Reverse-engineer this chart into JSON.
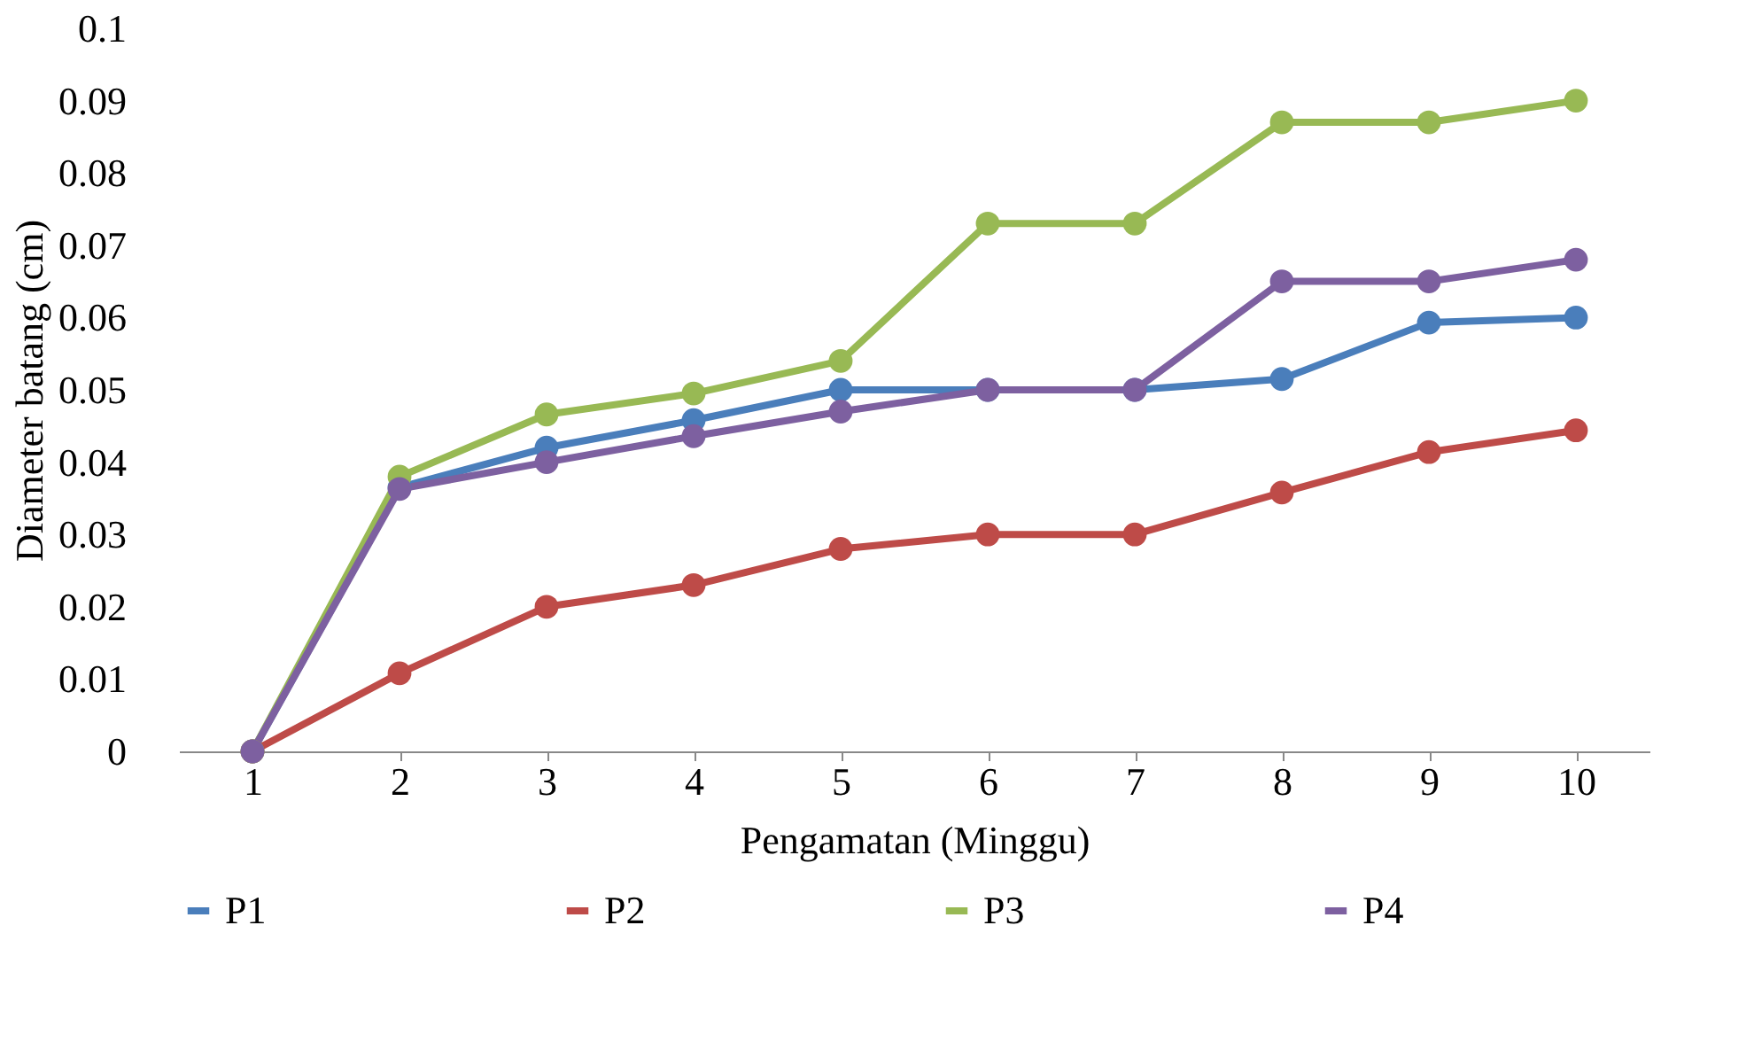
{
  "chart_data": {
    "type": "line",
    "xlabel": "Pengamatan (Minggu)",
    "ylabel": "Diameter batang (cm)",
    "categories": [
      "1",
      "2",
      "3",
      "4",
      "5",
      "6",
      "7",
      "8",
      "9",
      "10"
    ],
    "series": [
      {
        "name": "P1",
        "color": "#4a7ebb",
        "values": [
          0,
          0.0365,
          0.042,
          0.0458,
          0.05,
          0.05,
          0.05,
          0.0515,
          0.0593,
          0.06
        ]
      },
      {
        "name": "P2",
        "color": "#be4b48",
        "values": [
          0,
          0.0108,
          0.02,
          0.023,
          0.028,
          0.03,
          0.03,
          0.0358,
          0.0414,
          0.0444
        ]
      },
      {
        "name": "P3",
        "color": "#98b954",
        "values": [
          0,
          0.038,
          0.0466,
          0.0495,
          0.054,
          0.073,
          0.073,
          0.087,
          0.087,
          0.09
        ]
      },
      {
        "name": "P4",
        "color": "#7d60a0",
        "values": [
          0,
          0.0363,
          0.04,
          0.0436,
          0.047,
          0.05,
          0.05,
          0.065,
          0.065,
          0.068
        ]
      }
    ],
    "ylim": [
      0,
      0.1
    ],
    "yticks": [
      0,
      0.01,
      0.02,
      0.03,
      0.04,
      0.05,
      0.06,
      0.07,
      0.08,
      0.09,
      0.1
    ],
    "grid": false,
    "legend": "bottom",
    "marker": "circle",
    "line_style": "solid"
  }
}
